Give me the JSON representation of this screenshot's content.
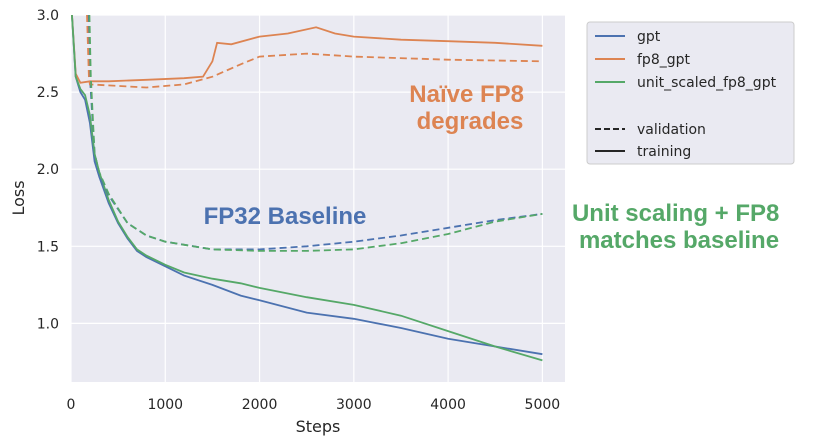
{
  "chart_data": {
    "type": "line",
    "title": "",
    "xlabel": "Steps",
    "ylabel": "Loss",
    "xlim": [
      0,
      5240
    ],
    "ylim": [
      0.62,
      3.0
    ],
    "xticks": [
      0,
      1000,
      2000,
      3000,
      4000,
      5000
    ],
    "yticks": [
      1.0,
      1.5,
      2.0,
      2.5,
      3.0
    ],
    "ytick_labels": [
      "1.0",
      "1.5",
      "2.0",
      "2.5",
      "3.0"
    ],
    "grid": true,
    "legend_position": "outside-top-right",
    "legend": {
      "series": [
        {
          "name": "gpt",
          "color": "#4c72b0"
        },
        {
          "name": "fp8_gpt",
          "color": "#dd8452"
        },
        {
          "name": "unit_scaled_fp8_gpt",
          "color": "#55a868"
        }
      ],
      "styles": [
        {
          "name": "validation",
          "dash": true
        },
        {
          "name": "training",
          "dash": false
        }
      ]
    },
    "series": [
      {
        "name": "gpt",
        "kind": "training",
        "color": "#4c72b0",
        "x": [
          0,
          50,
          100,
          150,
          200,
          250,
          300,
          400,
          500,
          600,
          700,
          800,
          1000,
          1200,
          1500,
          1800,
          2000,
          2500,
          3000,
          3500,
          4000,
          4500,
          5000
        ],
        "y": [
          3.1,
          2.6,
          2.5,
          2.45,
          2.3,
          2.05,
          1.95,
          1.78,
          1.65,
          1.55,
          1.47,
          1.43,
          1.37,
          1.31,
          1.25,
          1.18,
          1.15,
          1.07,
          1.03,
          0.97,
          0.9,
          0.85,
          0.8
        ]
      },
      {
        "name": "fp8_gpt",
        "kind": "training",
        "color": "#dd8452",
        "x": [
          0,
          50,
          100,
          200,
          400,
          800,
          1200,
          1400,
          1500,
          1550,
          1700,
          2000,
          2300,
          2600,
          2800,
          3000,
          3500,
          4000,
          4500,
          5000
        ],
        "y": [
          3.1,
          2.62,
          2.56,
          2.57,
          2.57,
          2.58,
          2.59,
          2.6,
          2.7,
          2.82,
          2.81,
          2.86,
          2.88,
          2.92,
          2.88,
          2.86,
          2.84,
          2.83,
          2.82,
          2.8
        ]
      },
      {
        "name": "unit_scaled_fp8_gpt",
        "kind": "training",
        "color": "#55a868",
        "x": [
          0,
          50,
          100,
          150,
          200,
          250,
          300,
          400,
          500,
          600,
          700,
          800,
          1000,
          1200,
          1500,
          1800,
          2000,
          2500,
          3000,
          3500,
          4000,
          4500,
          5000
        ],
        "y": [
          3.1,
          2.6,
          2.52,
          2.48,
          2.35,
          2.1,
          1.98,
          1.8,
          1.66,
          1.56,
          1.48,
          1.44,
          1.38,
          1.33,
          1.29,
          1.26,
          1.23,
          1.17,
          1.12,
          1.05,
          0.95,
          0.85,
          0.76
        ]
      },
      {
        "name": "gpt",
        "kind": "validation",
        "color": "#4c72b0",
        "x": [
          180,
          200,
          250,
          300,
          400,
          600,
          800,
          1000,
          1500,
          2000,
          2500,
          3000,
          3500,
          4000,
          4500,
          5000
        ],
        "y": [
          3.0,
          2.6,
          2.1,
          1.97,
          1.83,
          1.65,
          1.57,
          1.53,
          1.48,
          1.48,
          1.5,
          1.53,
          1.57,
          1.62,
          1.67,
          1.71
        ]
      },
      {
        "name": "fp8_gpt",
        "kind": "validation",
        "color": "#dd8452",
        "x": [
          170,
          190,
          200,
          500,
          800,
          1200,
          1500,
          1800,
          2000,
          2500,
          3000,
          4000,
          5000
        ],
        "y": [
          3.0,
          2.6,
          2.55,
          2.54,
          2.53,
          2.55,
          2.6,
          2.68,
          2.73,
          2.75,
          2.73,
          2.71,
          2.7
        ]
      },
      {
        "name": "unit_scaled_fp8_gpt",
        "kind": "validation",
        "color": "#55a868",
        "x": [
          195,
          210,
          250,
          300,
          400,
          600,
          800,
          1000,
          1500,
          2000,
          2500,
          3000,
          3500,
          4000,
          4500,
          5000
        ],
        "y": [
          3.0,
          2.6,
          2.1,
          1.98,
          1.84,
          1.65,
          1.57,
          1.53,
          1.48,
          1.47,
          1.47,
          1.48,
          1.52,
          1.58,
          1.66,
          1.71
        ]
      }
    ],
    "annotations": [
      {
        "text_lines": [
          "Naïve FP8",
          "degrades"
        ],
        "color": "#dd8452"
      },
      {
        "text_lines": [
          "FP32 Baseline"
        ],
        "color": "#4c72b0"
      },
      {
        "text_lines": [
          "Unit scaling + FP8",
          "matches baseline"
        ],
        "color": "#55a868"
      }
    ]
  }
}
